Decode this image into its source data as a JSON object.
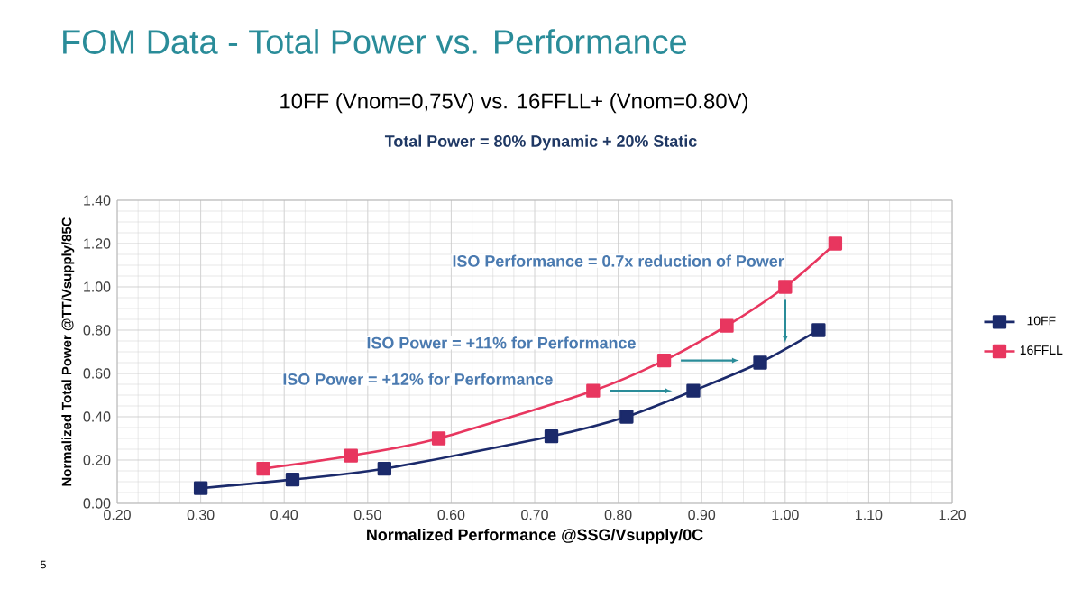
{
  "chart_data": {
    "type": "line",
    "title": "FOM Data - Total Power vs. Performance",
    "subtitle": "10FF (Vnom=0,75V) vs. 16FFLL+ (Vnom=0.80V)",
    "xlabel": "Normalized Performance @SSG/Vsupply/0C",
    "ylabel": "Normalized Total Power @TT/Vsupply/85C",
    "series": [
      {
        "name": "10FF",
        "color": "#1b2a6b",
        "x": [
          0.3,
          0.41,
          0.52,
          0.72,
          0.81,
          0.89,
          0.97,
          1.04
        ],
        "values": [
          0.07,
          0.11,
          0.16,
          0.31,
          0.4,
          0.52,
          0.65,
          0.8
        ]
      },
      {
        "name": "16FFLL",
        "color": "#e8365f",
        "x": [
          0.375,
          0.48,
          0.585,
          0.77,
          0.855,
          0.93,
          1.0,
          1.06
        ],
        "values": [
          0.16,
          0.22,
          0.3,
          0.52,
          0.66,
          0.82,
          1.0,
          1.2
        ]
      }
    ],
    "xlim": [
      0.2,
      1.2
    ],
    "ylim": [
      0,
      1.4
    ],
    "xticks": [
      {
        "value": 0.2,
        "label": "0.20"
      },
      {
        "value": 0.3,
        "label": "0.30"
      },
      {
        "value": 0.4,
        "label": "0.40"
      },
      {
        "value": 0.5,
        "label": "0.50"
      },
      {
        "value": 0.6,
        "label": "0.60"
      },
      {
        "value": 0.7,
        "label": "0.70"
      },
      {
        "value": 0.8,
        "label": "0.80"
      },
      {
        "value": 0.9,
        "label": "0.90"
      },
      {
        "value": 1.0,
        "label": "1.00"
      },
      {
        "value": 1.1,
        "label": "1.10"
      },
      {
        "value": 1.2,
        "label": "1.20"
      }
    ],
    "yticks": [
      {
        "value": 0,
        "label": "0.00"
      },
      {
        "value": 0.2,
        "label": "0.20"
      },
      {
        "value": 0.4,
        "label": "0.40"
      },
      {
        "value": 0.6,
        "label": "0.60"
      },
      {
        "value": 0.8,
        "label": "0.80"
      },
      {
        "value": 1.0,
        "label": "1.00"
      },
      {
        "value": 1.2,
        "label": "1.20"
      },
      {
        "value": 1.4,
        "label": "1.40"
      }
    ],
    "annotations": [
      "Total Power = 80% Dynamic + 20% Static",
      "ISO Performance = 0.7x reduction of Power",
      "ISO Power = +11% for Performance",
      "ISO Power = +12% for Performance",
      "5"
    ],
    "grid": true,
    "legend": "right",
    "marker": "square",
    "line_style": "solid"
  }
}
